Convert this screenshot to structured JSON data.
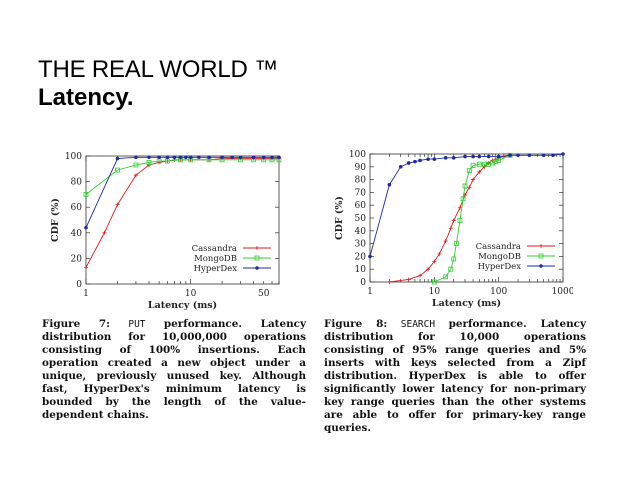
{
  "slide": {
    "title": "THE REAL WORLD ™",
    "subtitle": "Latency."
  },
  "chart_data": [
    {
      "type": "line",
      "xscale": "log",
      "xlabel": "Latency (ms)",
      "ylabel": "CDF (%)",
      "xlim": [
        1,
        70
      ],
      "ylim": [
        0,
        100
      ],
      "xticks": [
        1,
        10,
        50
      ],
      "yticks": [
        0,
        20,
        40,
        60,
        80,
        100
      ],
      "grid": false,
      "legend": "bottom-right",
      "series": [
        {
          "name": "Cassandra",
          "color": "#e31a1c",
          "marker": "plus",
          "x": [
            1,
            1.5,
            2,
            3,
            4,
            5,
            6,
            7,
            8,
            10,
            15,
            20,
            30,
            40,
            50,
            60,
            70
          ],
          "y": [
            13,
            40,
            62,
            85,
            93,
            95,
            96,
            97,
            97,
            97,
            97,
            98,
            98,
            98,
            98,
            98,
            98
          ]
        },
        {
          "name": "MongoDB",
          "color": "#33cc33",
          "marker": "square",
          "x": [
            1,
            2,
            3,
            4,
            5,
            6,
            8,
            10,
            15,
            20,
            30,
            40,
            50,
            60,
            70
          ],
          "y": [
            70,
            89,
            93,
            95,
            96,
            96,
            97,
            97,
            97,
            97,
            97,
            97,
            97,
            97,
            97
          ]
        },
        {
          "name": "HyperDex",
          "color": "#1f2aa8",
          "marker": "circle",
          "x": [
            1,
            2,
            3,
            4,
            5,
            6,
            7,
            8,
            9,
            10,
            12,
            15,
            20,
            25,
            30,
            40,
            50,
            60,
            70
          ],
          "y": [
            44,
            98,
            99,
            99,
            99,
            99,
            99,
            99,
            99,
            99,
            99,
            99,
            99,
            99,
            99,
            99,
            99,
            99,
            99
          ]
        }
      ]
    },
    {
      "type": "line",
      "xscale": "log",
      "xlabel": "Latency (ms)",
      "ylabel": "CDF (%)",
      "xlim": [
        1,
        1000
      ],
      "ylim": [
        0,
        100
      ],
      "xticks": [
        1,
        10,
        100,
        1000
      ],
      "yticks": [
        0,
        10,
        20,
        30,
        40,
        50,
        60,
        70,
        80,
        90,
        100
      ],
      "grid": false,
      "legend": "bottom-right",
      "series": [
        {
          "name": "Cassandra",
          "color": "#e31a1c",
          "marker": "plus",
          "x": [
            2,
            4,
            6,
            8,
            10,
            12,
            15,
            18,
            20,
            25,
            30,
            35,
            40,
            50,
            60,
            70,
            80,
            90,
            100,
            120,
            150
          ],
          "y": [
            0,
            2,
            5,
            10,
            16,
            22,
            32,
            42,
            48,
            58,
            68,
            74,
            80,
            86,
            90,
            93,
            95,
            96,
            97,
            98,
            99
          ]
        },
        {
          "name": "MongoDB",
          "color": "#33cc33",
          "marker": "square",
          "x": [
            10,
            15,
            18,
            20,
            22,
            25,
            28,
            30,
            35,
            40,
            50,
            60,
            70,
            80,
            90,
            100,
            150
          ],
          "y": [
            0,
            4,
            10,
            18,
            30,
            48,
            65,
            75,
            87,
            91,
            92,
            92,
            92,
            93,
            94,
            95,
            99
          ]
        },
        {
          "name": "HyperDex",
          "color": "#1f2aa8",
          "marker": "circle",
          "x": [
            1,
            2,
            3,
            4,
            5,
            6,
            8,
            10,
            15,
            20,
            30,
            40,
            50,
            70,
            100,
            150,
            200,
            300,
            500,
            700,
            1000
          ],
          "y": [
            20,
            76,
            90,
            93,
            94,
            95,
            96,
            96,
            97,
            97,
            98,
            98,
            98,
            98,
            98,
            99,
            99,
            99,
            99,
            99,
            100
          ]
        }
      ]
    }
  ],
  "captions": {
    "fig7": {
      "label": "Figure 7:",
      "code": "PUT",
      "text": "performance. Latency distribution for 10,000,000 operations consisting of 100% insertions. Each operation created a new object under a unique, previously unused key. Although fast, HyperDex's minimum latency is bounded by the length of the value-dependent chains."
    },
    "fig8": {
      "label": "Figure 8:",
      "code": "SEARCH",
      "text": "performance. Latency distribution for 10,000 operations consisting of 95% range queries and 5% inserts with keys selected from a Zipf distribution. HyperDex is able to offer significantly lower latency for non-primary key range queries than the other systems are able to offer for primary-key range queries."
    }
  }
}
